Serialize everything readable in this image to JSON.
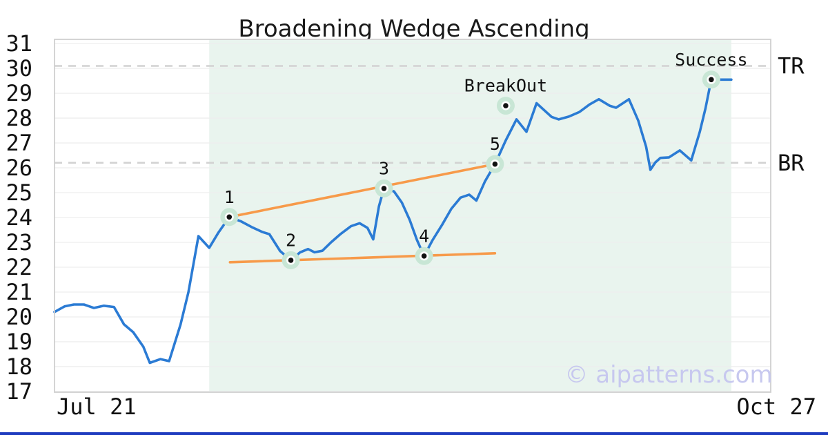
{
  "title": "Broadening Wedge Ascending",
  "watermark": "© aipatterns.com",
  "x_axis": {
    "start_label": "Jul 21",
    "end_label": "Oct 27"
  },
  "y_axis": {
    "ticks": [
      17,
      18,
      19,
      20,
      21,
      22,
      23,
      24,
      25,
      26,
      27,
      28,
      29,
      30,
      31
    ]
  },
  "colors": {
    "price_line": "#2b7bd4",
    "trendline": "#f79a4a",
    "marker_halo": "#c8e6d5",
    "marker_dot": "#111111",
    "pattern_zone": "#e9f4ee",
    "gridline": "#ededed",
    "dashed_level": "#d2d2d2",
    "plot_border": "#cfcfcf",
    "text": "#111111",
    "watermark": "#c7c8ef",
    "accent_bar": "#1e3bbf"
  },
  "chart_data": {
    "type": "line",
    "title": "Broadening Wedge Ascending",
    "ylim": [
      16.97,
      31.17
    ],
    "grid": true,
    "series": [
      {
        "name": "price",
        "points": [
          [
            0,
            20.2
          ],
          [
            1.4,
            20.42
          ],
          [
            2.7,
            20.5
          ],
          [
            4.1,
            20.5
          ],
          [
            5.5,
            20.36
          ],
          [
            6.9,
            20.45
          ],
          [
            8.3,
            20.4
          ],
          [
            9.7,
            19.7
          ],
          [
            11.0,
            19.38
          ],
          [
            12.4,
            18.8
          ],
          [
            13.3,
            18.15
          ],
          [
            14.8,
            18.3
          ],
          [
            16.0,
            18.22
          ],
          [
            17.6,
            19.7
          ],
          [
            18.7,
            21.0
          ],
          [
            20.1,
            23.25
          ],
          [
            21.6,
            22.78
          ],
          [
            22.9,
            23.4
          ],
          [
            24.4,
            24.02
          ],
          [
            26.0,
            23.85
          ],
          [
            27.5,
            23.62
          ],
          [
            29.0,
            23.42
          ],
          [
            30.0,
            23.33
          ],
          [
            31.5,
            22.65
          ],
          [
            33.0,
            22.28
          ],
          [
            34.3,
            22.6
          ],
          [
            35.4,
            22.73
          ],
          [
            36.3,
            22.6
          ],
          [
            37.4,
            22.66
          ],
          [
            38.6,
            23.0
          ],
          [
            40.0,
            23.35
          ],
          [
            41.4,
            23.65
          ],
          [
            42.6,
            23.77
          ],
          [
            43.7,
            23.58
          ],
          [
            44.5,
            23.12
          ],
          [
            45.3,
            24.45
          ],
          [
            46.0,
            25.17
          ],
          [
            47.4,
            25.05
          ],
          [
            48.5,
            24.6
          ],
          [
            49.6,
            23.9
          ],
          [
            50.6,
            23.1
          ],
          [
            51.6,
            22.45
          ],
          [
            52.8,
            23.1
          ],
          [
            54.1,
            23.7
          ],
          [
            55.4,
            24.35
          ],
          [
            56.7,
            24.8
          ],
          [
            57.9,
            24.92
          ],
          [
            58.9,
            24.68
          ],
          [
            60.1,
            25.45
          ],
          [
            61.5,
            26.15
          ],
          [
            63.0,
            27.1
          ],
          [
            64.5,
            27.95
          ],
          [
            65.9,
            27.45
          ],
          [
            67.3,
            28.6
          ],
          [
            69.4,
            28.05
          ],
          [
            70.4,
            27.95
          ],
          [
            71.8,
            28.06
          ],
          [
            73.3,
            28.25
          ],
          [
            74.7,
            28.55
          ],
          [
            76.0,
            28.76
          ],
          [
            77.5,
            28.5
          ],
          [
            78.4,
            28.42
          ],
          [
            80.2,
            28.76
          ],
          [
            81.5,
            27.9
          ],
          [
            82.6,
            26.85
          ],
          [
            83.2,
            25.92
          ],
          [
            83.9,
            26.22
          ],
          [
            84.6,
            26.4
          ],
          [
            85.8,
            26.42
          ],
          [
            87.3,
            26.7
          ],
          [
            88.9,
            26.3
          ],
          [
            90.1,
            27.45
          ],
          [
            90.9,
            28.4
          ],
          [
            91.7,
            29.55
          ],
          [
            94.5,
            29.55
          ]
        ]
      }
    ],
    "levels": [
      {
        "label": "TR",
        "value": 30.1
      },
      {
        "label": "BR",
        "value": 26.2
      }
    ],
    "trendlines": [
      {
        "name": "upper",
        "x1_pct": 24.4,
        "v1": 24.02,
        "x2_pct": 61.5,
        "v2": 26.15
      },
      {
        "name": "lower",
        "x1_pct": 24.5,
        "v1": 22.2,
        "x2_pct": 61.5,
        "v2": 26.15,
        "v2_override": 22.56
      }
    ],
    "pattern_zone": {
      "x1_pct": 21.6,
      "x2_pct": 94.5
    },
    "annotations": [
      {
        "label": "1",
        "x_pct": 24.4,
        "value": 24.02
      },
      {
        "label": "2",
        "x_pct": 33.0,
        "value": 22.28
      },
      {
        "label": "3",
        "x_pct": 46.0,
        "value": 25.17
      },
      {
        "label": "4",
        "x_pct": 51.6,
        "value": 22.45
      },
      {
        "label": "5",
        "x_pct": 61.5,
        "value": 26.15
      },
      {
        "label": "BreakOut",
        "x_pct": 63.0,
        "value": 28.5
      },
      {
        "label": "Success",
        "x_pct": 91.7,
        "value": 29.55
      }
    ]
  }
}
